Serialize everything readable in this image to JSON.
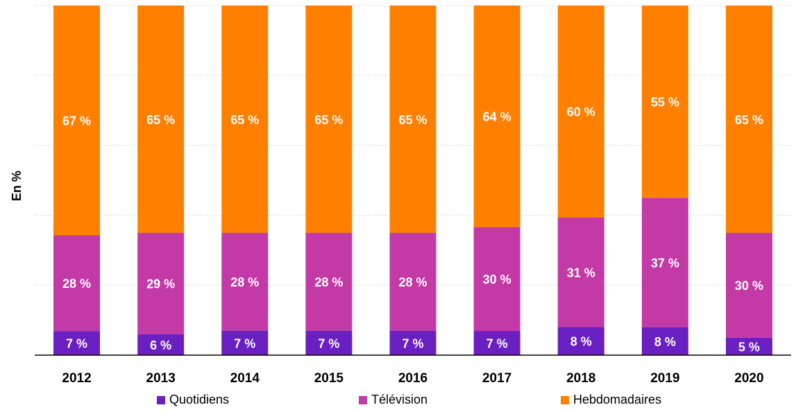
{
  "chart_data": {
    "type": "bar",
    "stacked": true,
    "percent_axis": true,
    "ylabel": "En %",
    "ylim": [
      0,
      100
    ],
    "grid": "horizontal dashed",
    "legend_position": "bottom",
    "categories": [
      "2012",
      "2013",
      "2014",
      "2015",
      "2016",
      "2017",
      "2018",
      "2019",
      "2020"
    ],
    "series": [
      {
        "name": "Quotidiens",
        "color": "#6a1fc2",
        "values": [
          7,
          6,
          7,
          7,
          7,
          7,
          8,
          8,
          5
        ],
        "labels": [
          "7 %",
          "6 %",
          "7 %",
          "7 %",
          "7 %",
          "7 %",
          "8 %",
          "8 %",
          "5 %"
        ]
      },
      {
        "name": "Télévision",
        "color": "#c339a5",
        "values": [
          28,
          29,
          28,
          28,
          28,
          30,
          31,
          37,
          30
        ],
        "labels": [
          "28 %",
          "29 %",
          "28 %",
          "28 %",
          "28 %",
          "30 %",
          "31 %",
          "37 %",
          "30 %"
        ]
      },
      {
        "name": "Hebdomadaires",
        "color": "#ff8000",
        "values": [
          67,
          65,
          65,
          65,
          65,
          64,
          60,
          55,
          65
        ],
        "labels": [
          "67 %",
          "65 %",
          "65 %",
          "65 %",
          "65 %",
          "64 %",
          "60 %",
          "55 %",
          "65 %"
        ]
      }
    ]
  }
}
